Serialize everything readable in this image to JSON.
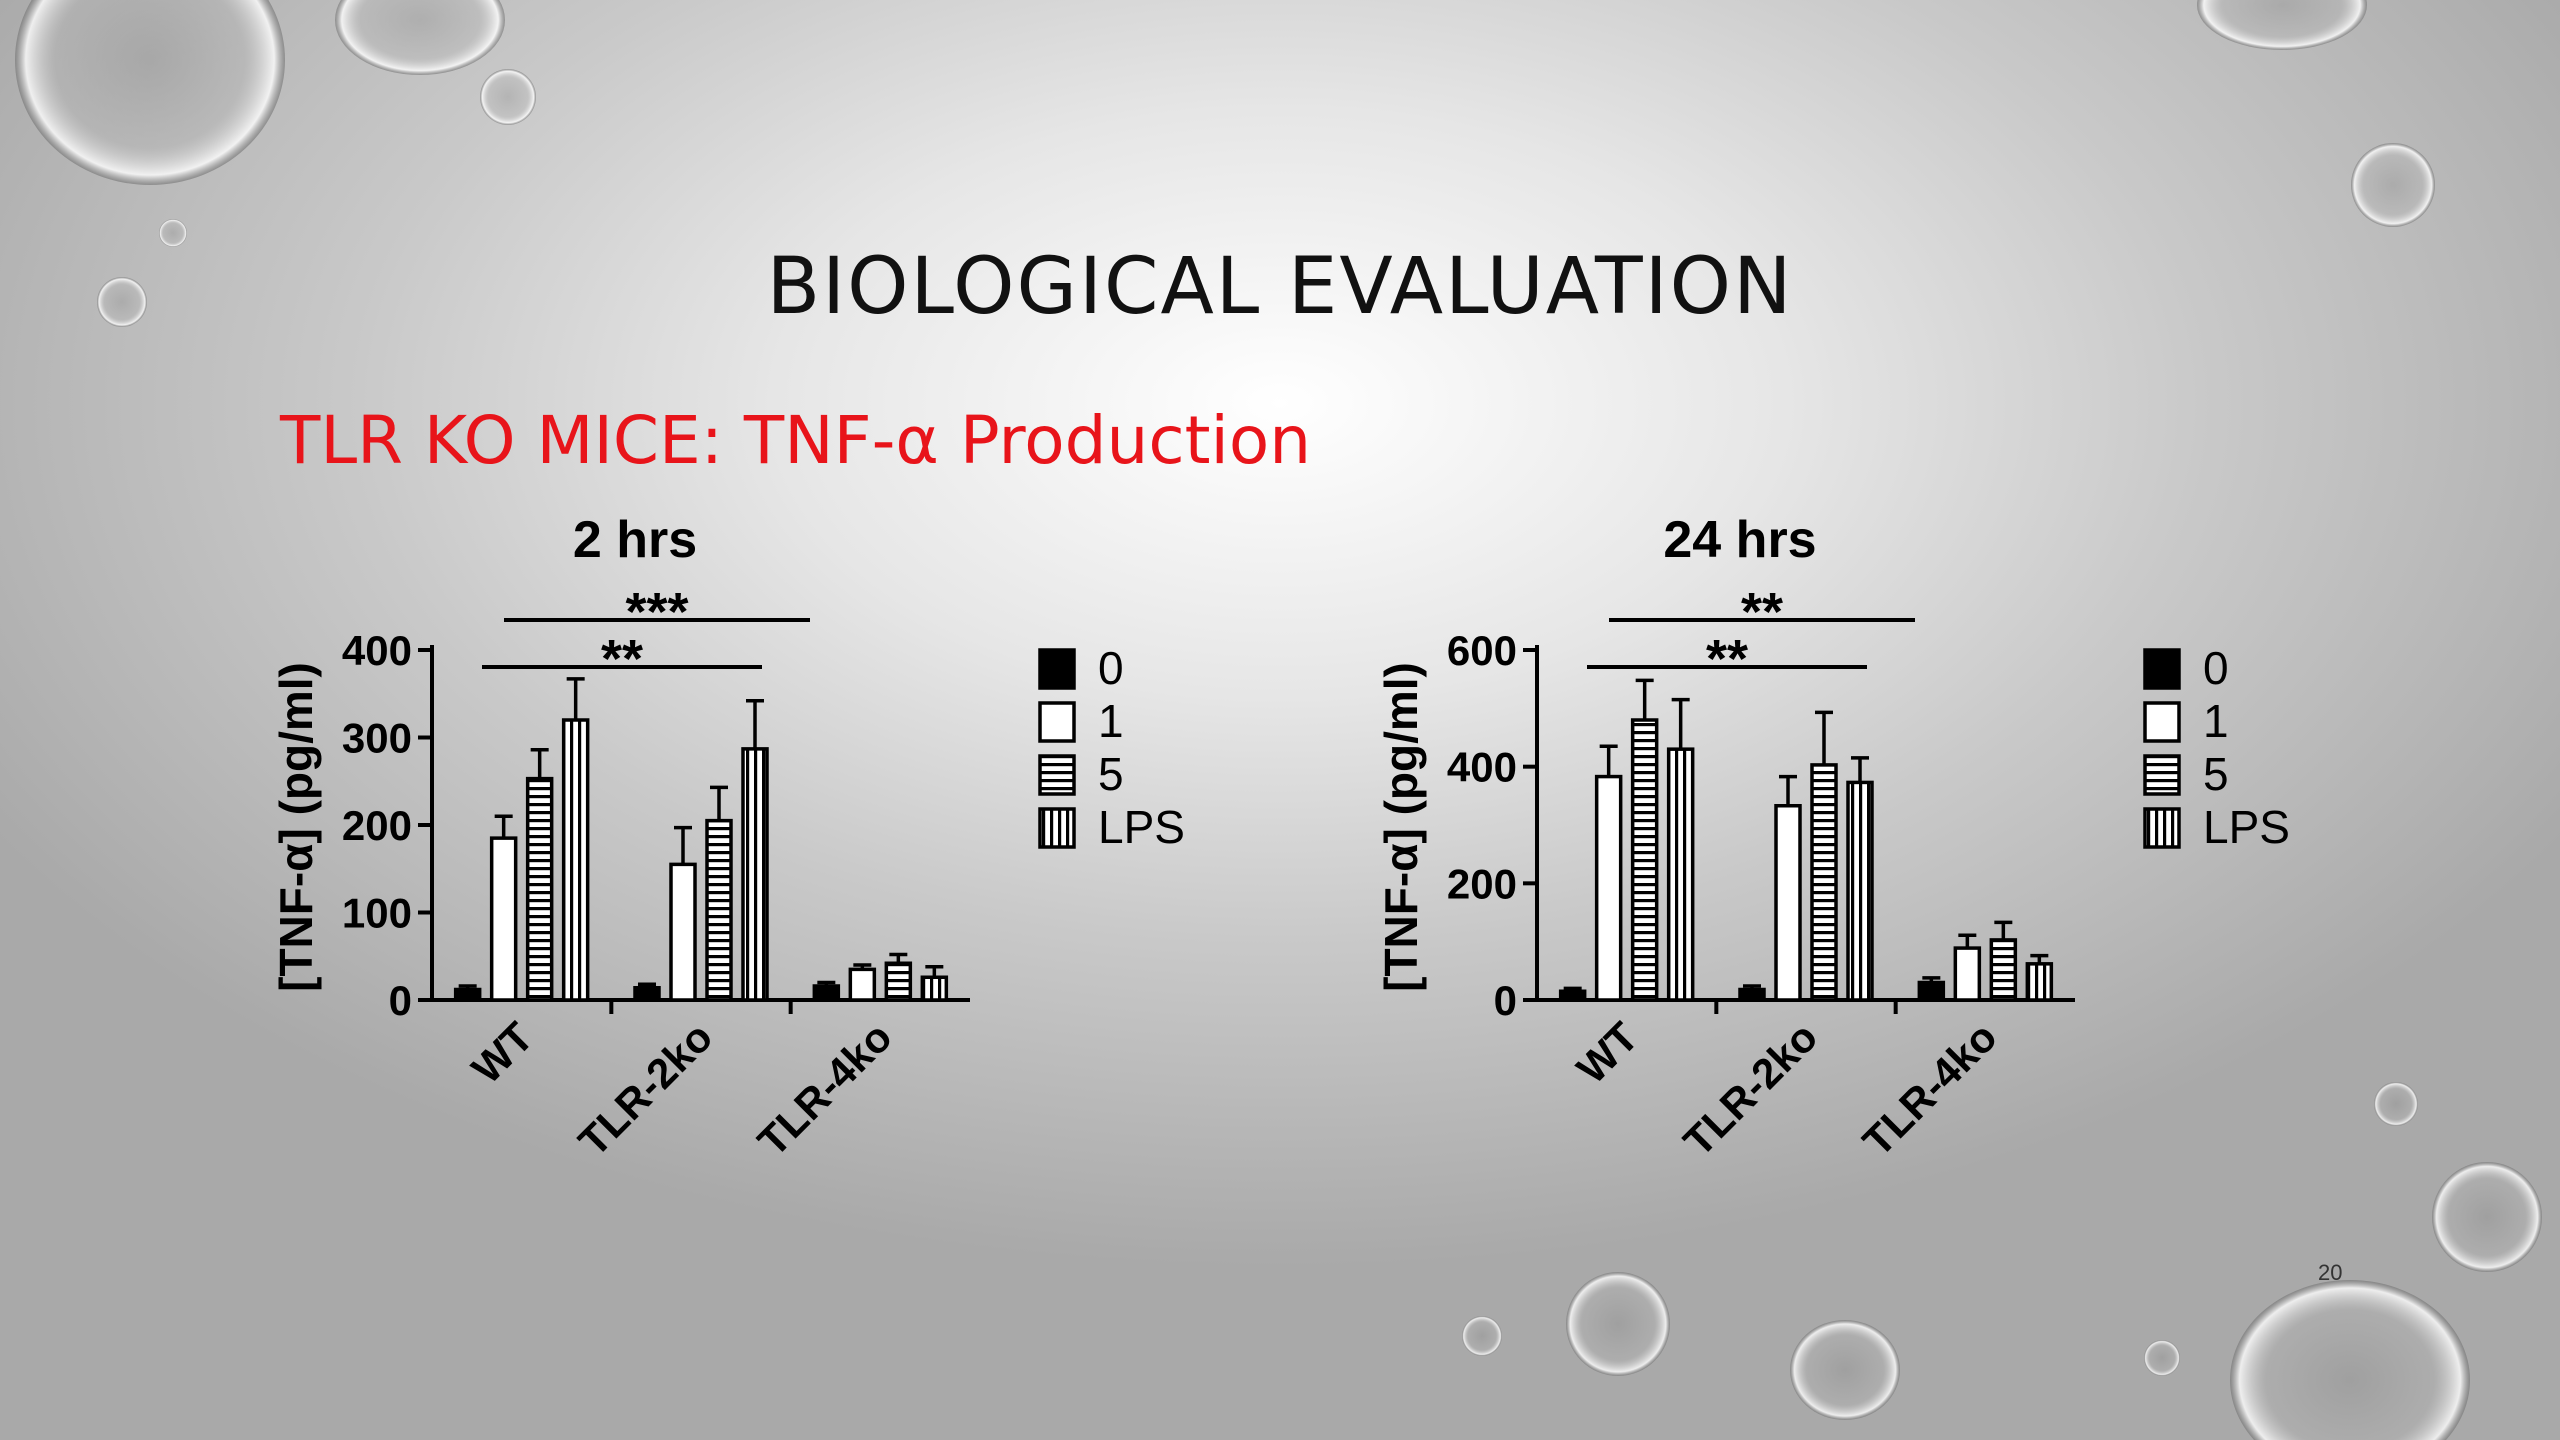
{
  "slide": {
    "title": "BIOLOGICAL EVALUATION",
    "subtitle": "TLR KO MICE: TNF-α Production",
    "page_number": "20"
  },
  "colors": {
    "title": "#111111",
    "subtitle": "#e8141a",
    "bars": "#000000",
    "background": "#c9c9c9"
  },
  "chart_data": [
    {
      "type": "bar",
      "title": "2 hrs",
      "ylabel": "[TNF-α] (pg/ml)",
      "ylim": [
        0,
        400
      ],
      "yticks": [
        0,
        100,
        200,
        300,
        400
      ],
      "categories": [
        "WT",
        "TLR-2ko",
        "TLR-4ko"
      ],
      "series": [
        {
          "name": "0",
          "pattern": "solid",
          "values": [
            12,
            14,
            16
          ],
          "errors": [
            4,
            4,
            4
          ]
        },
        {
          "name": "1",
          "pattern": "open",
          "values": [
            185,
            155,
            35
          ],
          "errors": [
            25,
            42,
            5
          ]
        },
        {
          "name": "5",
          "pattern": "horizontal",
          "values": [
            253,
            205,
            42
          ],
          "errors": [
            33,
            38,
            10
          ]
        },
        {
          "name": "LPS",
          "pattern": "vertical",
          "values": [
            320,
            287,
            26
          ],
          "errors": [
            47,
            55,
            12
          ]
        }
      ],
      "significance": [
        {
          "label": "**",
          "from": "WT",
          "to": "TLR-4ko"
        },
        {
          "label": "***",
          "from": "WT",
          "to": "TLR-4ko"
        }
      ],
      "legend_position": "right"
    },
    {
      "type": "bar",
      "title": "24 hrs",
      "ylabel": "[TNF-α] (pg/ml)",
      "ylim": [
        0,
        600
      ],
      "yticks": [
        0,
        200,
        400,
        600
      ],
      "categories": [
        "WT",
        "TLR-2ko",
        "TLR-4ko"
      ],
      "series": [
        {
          "name": "0",
          "pattern": "solid",
          "values": [
            15,
            18,
            30
          ],
          "errors": [
            5,
            6,
            8
          ]
        },
        {
          "name": "1",
          "pattern": "open",
          "values": [
            383,
            333,
            89
          ],
          "errors": [
            52,
            50,
            22
          ]
        },
        {
          "name": "5",
          "pattern": "horizontal",
          "values": [
            480,
            403,
            103
          ],
          "errors": [
            68,
            90,
            30
          ]
        },
        {
          "name": "LPS",
          "pattern": "vertical",
          "values": [
            430,
            373,
            62
          ],
          "errors": [
            85,
            42,
            14
          ]
        }
      ],
      "significance": [
        {
          "label": "**",
          "from": "WT",
          "to": "TLR-4ko"
        },
        {
          "label": "**",
          "from": "WT",
          "to": "TLR-4ko"
        }
      ],
      "legend_position": "right"
    }
  ]
}
